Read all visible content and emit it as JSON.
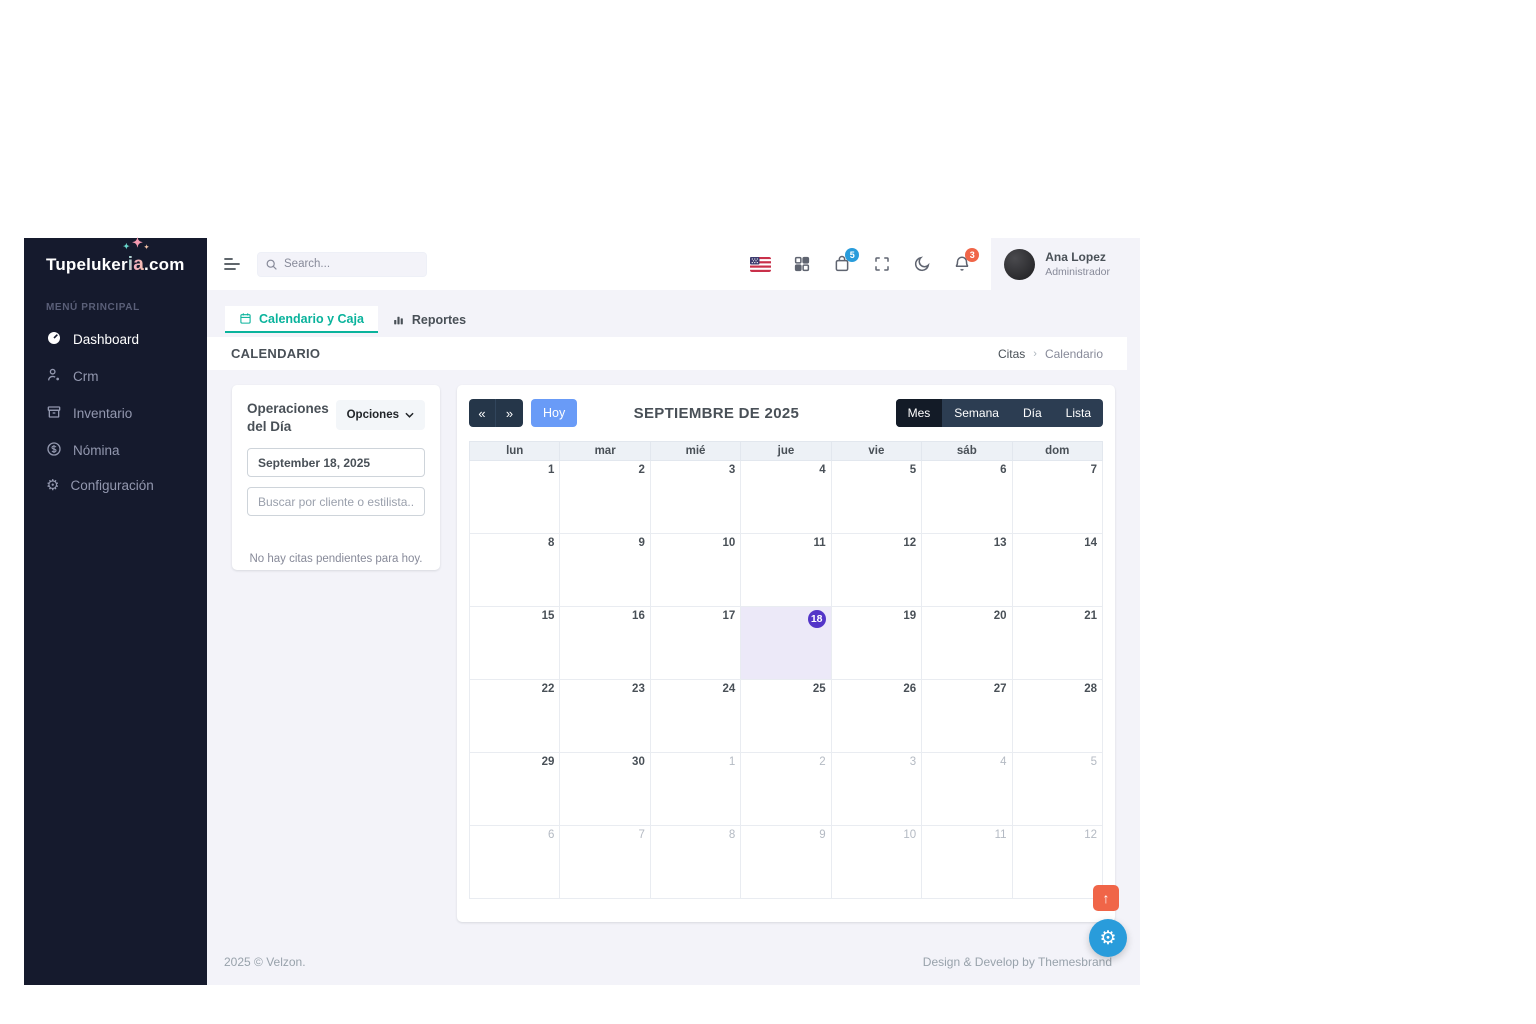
{
  "colors": {
    "sidebar_bg": "#151a2d",
    "page_bg": "#f3f3f9",
    "accent_green": "#0ab39c",
    "accent_info": "#299cdb",
    "accent_danger": "#f06548",
    "today_purple": "#5335c8",
    "today_cell_bg": "#ece9f8",
    "hoy_button_blue": "#699bf7",
    "toolbar_dark": "#253649"
  },
  "sidebar": {
    "logo": {
      "part1": "Tupeluker",
      "part2": "ia",
      "part3": ".com"
    },
    "section_label": "MENÚ PRINCIPAL",
    "items": [
      {
        "label": "Dashboard",
        "icon": "gauge-icon",
        "active": true
      },
      {
        "label": "Crm",
        "icon": "user-icon",
        "active": false
      },
      {
        "label": "Inventario",
        "icon": "archive-icon",
        "active": false
      },
      {
        "label": "Nómina",
        "icon": "dollar-circle-icon",
        "active": false
      },
      {
        "label": "Configuración",
        "icon": "gear-icon",
        "active": false
      }
    ]
  },
  "topbar": {
    "search_placeholder": "Search...",
    "cart_badge": "5",
    "notifications_badge": "3",
    "user": {
      "name": "Ana Lopez",
      "role": "Administrador"
    }
  },
  "tabs": [
    {
      "label": "Calendario y Caja",
      "active": true
    },
    {
      "label": "Reportes",
      "active": false
    }
  ],
  "page": {
    "title": "CALENDARIO",
    "breadcrumb": [
      "Citas",
      "Calendario"
    ]
  },
  "operations_panel": {
    "title": "Operaciones del Día",
    "options_button": "Opciones",
    "date_value": "September 18, 2025",
    "search_placeholder": "Buscar por cliente o estilista...",
    "empty_message": "No hay citas pendientes para hoy."
  },
  "calendar": {
    "today_button": "Hoy",
    "title": "SEPTIEMBRE DE 2025",
    "views": [
      {
        "label": "Mes",
        "active": true
      },
      {
        "label": "Semana",
        "active": false
      },
      {
        "label": "Día",
        "active": false
      },
      {
        "label": "Lista",
        "active": false
      }
    ],
    "day_headers": [
      "lun",
      "mar",
      "mié",
      "jue",
      "vie",
      "sáb",
      "dom"
    ],
    "weeks": [
      [
        {
          "n": 1
        },
        {
          "n": 2
        },
        {
          "n": 3
        },
        {
          "n": 4
        },
        {
          "n": 5
        },
        {
          "n": 6
        },
        {
          "n": 7
        }
      ],
      [
        {
          "n": 8
        },
        {
          "n": 9
        },
        {
          "n": 10
        },
        {
          "n": 11
        },
        {
          "n": 12
        },
        {
          "n": 13
        },
        {
          "n": 14
        }
      ],
      [
        {
          "n": 15
        },
        {
          "n": 16
        },
        {
          "n": 17
        },
        {
          "n": 18,
          "today": true
        },
        {
          "n": 19
        },
        {
          "n": 20
        },
        {
          "n": 21
        }
      ],
      [
        {
          "n": 22
        },
        {
          "n": 23
        },
        {
          "n": 24
        },
        {
          "n": 25
        },
        {
          "n": 26
        },
        {
          "n": 27
        },
        {
          "n": 28
        }
      ],
      [
        {
          "n": 29
        },
        {
          "n": 30
        },
        {
          "n": 1,
          "other": true
        },
        {
          "n": 2,
          "other": true
        },
        {
          "n": 3,
          "other": true
        },
        {
          "n": 4,
          "other": true
        },
        {
          "n": 5,
          "other": true
        }
      ],
      [
        {
          "n": 6,
          "other": true
        },
        {
          "n": 7,
          "other": true
        },
        {
          "n": 8,
          "other": true
        },
        {
          "n": 9,
          "other": true
        },
        {
          "n": 10,
          "other": true
        },
        {
          "n": 11,
          "other": true
        },
        {
          "n": 12,
          "other": true
        }
      ]
    ]
  },
  "footer": {
    "left": "2025 © Velzon.",
    "right": "Design & Develop by Themesbrand"
  },
  "floating": {
    "scroll_top": "↑",
    "settings_gear": "⚙"
  }
}
